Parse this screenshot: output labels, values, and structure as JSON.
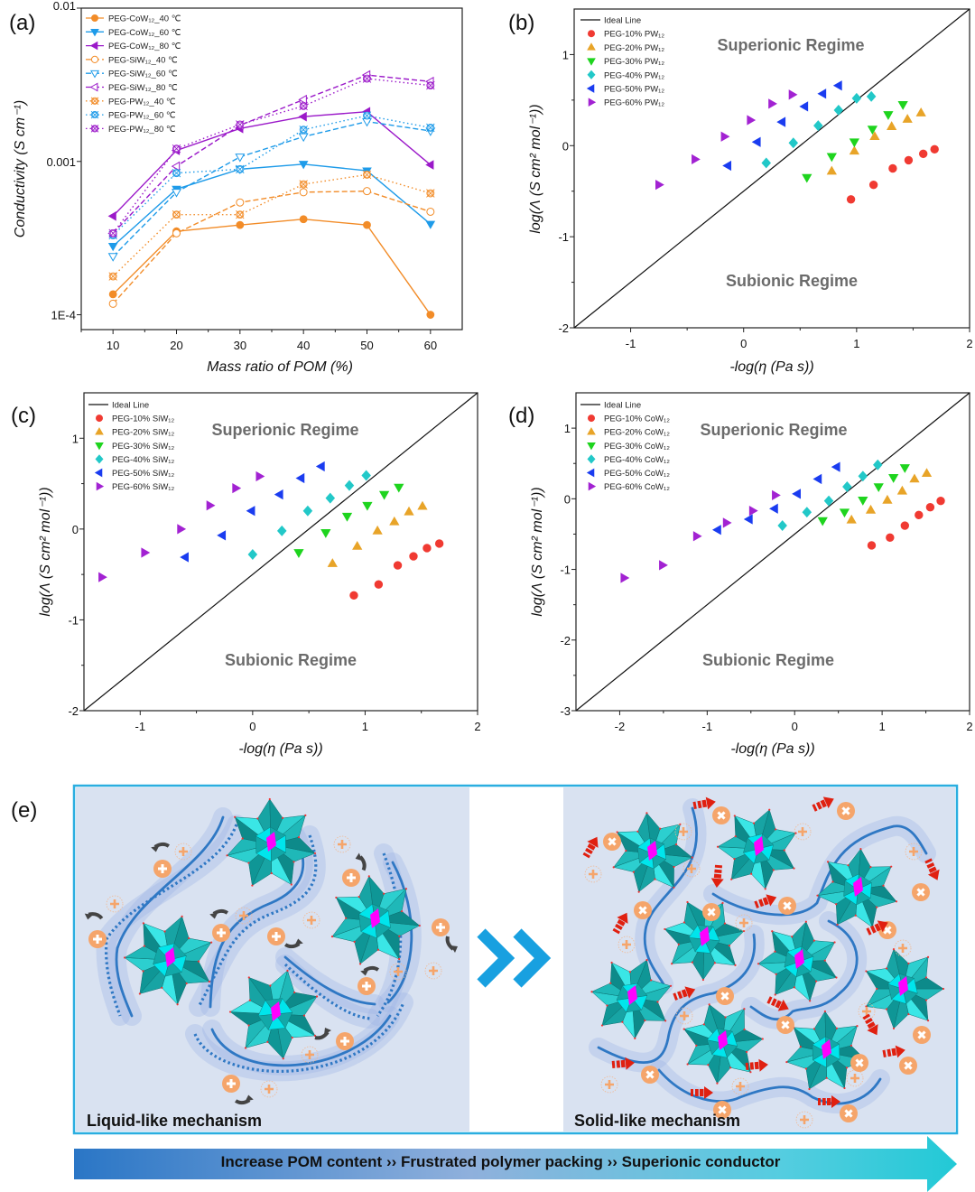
{
  "panel_labels": [
    "(a)",
    "(b)",
    "(c)",
    "(d)",
    "(e)"
  ],
  "chart_data": [
    {
      "type": "line",
      "xlabel": "Mass ratio of POM (%)",
      "ylabel": "Conductivity (S cm⁻¹)",
      "x": [
        10,
        20,
        30,
        40,
        50,
        60
      ],
      "xlim": [
        5,
        65
      ],
      "ylim": [
        8e-05,
        0.01
      ],
      "yscale": "log",
      "grid": false,
      "legend_placement": "top-left",
      "xticks": [
        {
          "value": 10,
          "label": "10"
        },
        {
          "value": 20,
          "label": "20"
        },
        {
          "value": 30,
          "label": "30"
        },
        {
          "value": 40,
          "label": "40"
        },
        {
          "value": 50,
          "label": "50"
        },
        {
          "value": 60,
          "label": "60"
        }
      ],
      "yticks": [
        {
          "value": 0.01,
          "label": "0.01"
        },
        {
          "value": 0.001,
          "label": "0.001"
        },
        {
          "value": 0.0001,
          "label": "1E-4"
        }
      ],
      "series": [
        {
          "name": "PEG-CoW₁₂_40 ℃",
          "color": "#f28c28",
          "marker": "circle",
          "filled": true,
          "line": "solid",
          "values": [
            0.000136,
            0.00035,
            0.000385,
            0.00042,
            0.000385,
            0.0001
          ]
        },
        {
          "name": "PEG-CoW₁₂_60 ℃",
          "color": "#1e9be9",
          "marker": "tri-down",
          "filled": true,
          "line": "solid",
          "values": [
            0.00028,
            0.00066,
            0.00089,
            0.00096,
            0.00087,
            0.00039
          ]
        },
        {
          "name": "PEG-CoW₁₂_80 ℃",
          "color": "#9b19c9",
          "marker": "tri-left",
          "filled": true,
          "line": "solid",
          "values": [
            0.00044,
            0.00118,
            0.00164,
            0.00196,
            0.00211,
            0.00095
          ]
        },
        {
          "name": "PEG-SiW₁₂_40 ℃",
          "color": "#f28c28",
          "marker": "circle",
          "filled": false,
          "line": "dashed",
          "values": [
            0.000118,
            0.00034,
            0.00054,
            0.00063,
            0.00064,
            0.00047
          ]
        },
        {
          "name": "PEG-SiW₁₂_60 ℃",
          "color": "#1e9be9",
          "marker": "tri-down",
          "filled": false,
          "line": "dashed",
          "values": [
            0.00024,
            0.00063,
            0.00107,
            0.00145,
            0.00182,
            0.00158
          ]
        },
        {
          "name": "PEG-SiW₁₂_80 ℃",
          "color": "#9b19c9",
          "marker": "tri-left",
          "filled": false,
          "line": "dashed",
          "values": [
            0.00034,
            0.00093,
            0.00172,
            0.00253,
            0.00366,
            0.00332
          ]
        },
        {
          "name": "PEG-PW₁₂_40 ℃",
          "color": "#f28c28",
          "marker": "crossed",
          "filled": false,
          "line": "dotted",
          "values": [
            0.000178,
            0.00045,
            0.00045,
            0.00071,
            0.00082,
            0.00062
          ]
        },
        {
          "name": "PEG-PW₁₂_60 ℃",
          "color": "#1e9be9",
          "marker": "crossed",
          "filled": false,
          "line": "dotted",
          "values": [
            0.00033,
            0.00084,
            0.00089,
            0.00161,
            0.00199,
            0.00166
          ]
        },
        {
          "name": "PEG-PW₁₂_80 ℃",
          "color": "#9b19c9",
          "marker": "crossed",
          "filled": false,
          "line": "dotted",
          "values": [
            0.00034,
            0.00121,
            0.00174,
            0.0023,
            0.00347,
            0.00313
          ]
        }
      ]
    },
    {
      "type": "scatter",
      "xlabel": "-log(η (Pa s))",
      "ylabel": "log(Λ (S cm² mol⁻¹))",
      "xlim": [
        -1.5,
        2
      ],
      "ylim": [
        -2,
        1.5
      ],
      "grid": false,
      "legend_placement": "top-left",
      "xticks": [
        {
          "value": -1,
          "label": "-1"
        },
        {
          "value": 0,
          "label": "0"
        },
        {
          "value": 1,
          "label": "1"
        },
        {
          "value": 2,
          "label": "2"
        }
      ],
      "yticks": [
        {
          "value": 1,
          "label": "1"
        },
        {
          "value": 0,
          "label": "0"
        },
        {
          "value": -1,
          "label": "-1"
        },
        {
          "value": -2,
          "label": "-2"
        }
      ],
      "ideal_line": {
        "label": "Ideal Line",
        "slope": 1,
        "intercept": -0.5
      },
      "annotations": [
        "Superionic Regime",
        "Subionic Regime"
      ],
      "series": [
        {
          "name": "PEG-10% PW₁₂",
          "color": "#f03a32",
          "marker": "circle",
          "points": [
            [
              0.95,
              -0.59
            ],
            [
              1.15,
              -0.43
            ],
            [
              1.32,
              -0.25
            ],
            [
              1.46,
              -0.16
            ],
            [
              1.59,
              -0.09
            ],
            [
              1.69,
              -0.04
            ]
          ]
        },
        {
          "name": "PEG-20% PW₁₂",
          "color": "#e8a428",
          "marker": "tri-up",
          "points": [
            [
              0.78,
              -0.28
            ],
            [
              0.98,
              -0.06
            ],
            [
              1.16,
              0.1
            ],
            [
              1.31,
              0.21
            ],
            [
              1.45,
              0.29
            ],
            [
              1.57,
              0.36
            ]
          ]
        },
        {
          "name": "PEG-30% PW₁₂",
          "color": "#1ed41e",
          "marker": "tri-down",
          "points": [
            [
              0.56,
              -0.35
            ],
            [
              0.78,
              -0.12
            ],
            [
              0.98,
              0.04
            ],
            [
              1.14,
              0.18
            ],
            [
              1.28,
              0.34
            ],
            [
              1.41,
              0.45
            ]
          ]
        },
        {
          "name": "PEG-40% PW₁₂",
          "color": "#22c8c8",
          "marker": "diamond",
          "points": [
            [
              0.2,
              -0.19
            ],
            [
              0.44,
              0.03
            ],
            [
              0.66,
              0.22
            ],
            [
              0.84,
              0.39
            ],
            [
              1.0,
              0.52
            ],
            [
              1.13,
              0.54
            ]
          ]
        },
        {
          "name": "PEG-50% PW₁₂",
          "color": "#1a3cf0",
          "marker": "tri-left",
          "points": [
            [
              -0.14,
              -0.22
            ],
            [
              0.12,
              0.04
            ],
            [
              0.34,
              0.26
            ],
            [
              0.54,
              0.43
            ],
            [
              0.7,
              0.57
            ],
            [
              0.84,
              0.66
            ]
          ]
        },
        {
          "name": "PEG-60% PW₁₂",
          "color": "#a222d2",
          "marker": "tri-right",
          "points": [
            [
              -0.75,
              -0.43
            ],
            [
              -0.43,
              -0.15
            ],
            [
              -0.17,
              0.1
            ],
            [
              0.06,
              0.28
            ],
            [
              0.25,
              0.46
            ],
            [
              0.43,
              0.56
            ]
          ]
        }
      ]
    },
    {
      "type": "scatter",
      "xlabel": "-log(η (Pa s))",
      "ylabel": "log(Λ (S cm² mol⁻¹))",
      "xlim": [
        -1.5,
        2
      ],
      "ylim": [
        -2,
        1.5
      ],
      "grid": false,
      "legend_placement": "top-left",
      "xticks": [
        {
          "value": -1,
          "label": "-1"
        },
        {
          "value": 0,
          "label": "0"
        },
        {
          "value": 1,
          "label": "1"
        },
        {
          "value": 2,
          "label": "2"
        }
      ],
      "yticks": [
        {
          "value": 1,
          "label": "1"
        },
        {
          "value": 0,
          "label": "0"
        },
        {
          "value": -1,
          "label": "-1"
        },
        {
          "value": -2,
          "label": "-2"
        }
      ],
      "ideal_line": {
        "label": "Ideal Line",
        "slope": 1,
        "intercept": -0.5
      },
      "annotations": [
        "Superionic Regime",
        "Subionic Regime"
      ],
      "series": [
        {
          "name": "PEG-10% SiW₁₂",
          "color": "#f03a32",
          "marker": "circle",
          "points": [
            [
              0.9,
              -0.73
            ],
            [
              1.12,
              -0.61
            ],
            [
              1.29,
              -0.4
            ],
            [
              1.43,
              -0.3
            ],
            [
              1.55,
              -0.21
            ],
            [
              1.66,
              -0.16
            ]
          ]
        },
        {
          "name": "PEG-20% SiW₁₂",
          "color": "#e8a428",
          "marker": "tri-up",
          "points": [
            [
              0.71,
              -0.38
            ],
            [
              0.93,
              -0.19
            ],
            [
              1.11,
              -0.02
            ],
            [
              1.26,
              0.08
            ],
            [
              1.39,
              0.19
            ],
            [
              1.51,
              0.25
            ]
          ]
        },
        {
          "name": "PEG-30% SiW₁₂",
          "color": "#1ed41e",
          "marker": "tri-down",
          "points": [
            [
              0.41,
              -0.26
            ],
            [
              0.65,
              -0.04
            ],
            [
              0.84,
              0.14
            ],
            [
              1.02,
              0.26
            ],
            [
              1.17,
              0.38
            ],
            [
              1.3,
              0.46
            ]
          ]
        },
        {
          "name": "PEG-40% SiW₁₂",
          "color": "#22c8c8",
          "marker": "diamond",
          "points": [
            [
              0.0,
              -0.28
            ],
            [
              0.26,
              -0.02
            ],
            [
              0.49,
              0.2
            ],
            [
              0.69,
              0.34
            ],
            [
              0.86,
              0.48
            ],
            [
              1.01,
              0.59
            ]
          ]
        },
        {
          "name": "PEG-50% SiW₁₂",
          "color": "#1a3cf0",
          "marker": "tri-left",
          "points": [
            [
              -0.6,
              -0.31
            ],
            [
              -0.27,
              -0.07
            ],
            [
              -0.01,
              0.2
            ],
            [
              0.24,
              0.38
            ],
            [
              0.43,
              0.56
            ],
            [
              0.61,
              0.69
            ]
          ]
        },
        {
          "name": "PEG-60% SiW₁₂",
          "color": "#a222d2",
          "marker": "tri-right",
          "points": [
            [
              -1.34,
              -0.53
            ],
            [
              -0.96,
              -0.26
            ],
            [
              -0.64,
              0.0
            ],
            [
              -0.38,
              0.26
            ],
            [
              -0.15,
              0.45
            ],
            [
              0.06,
              0.58
            ]
          ]
        }
      ]
    },
    {
      "type": "scatter",
      "xlabel": "-log(η (Pa s))",
      "ylabel": "log(Λ (S cm² mol⁻¹))",
      "xlim": [
        -2.5,
        2
      ],
      "ylim": [
        -3,
        1.5
      ],
      "grid": false,
      "legend_placement": "top-left",
      "xticks": [
        {
          "value": -2,
          "label": "-2"
        },
        {
          "value": -1,
          "label": "-1"
        },
        {
          "value": 0,
          "label": "0"
        },
        {
          "value": 1,
          "label": "1"
        },
        {
          "value": 2,
          "label": "2"
        }
      ],
      "yticks": [
        {
          "value": 1,
          "label": "1"
        },
        {
          "value": 0,
          "label": "0"
        },
        {
          "value": -1,
          "label": "-1"
        },
        {
          "value": -2,
          "label": "-2"
        },
        {
          "value": -3,
          "label": "-3"
        }
      ],
      "ideal_line": {
        "label": "Ideal Line",
        "slope": 1,
        "intercept": -0.5
      },
      "annotations": [
        "Superionic Regime",
        "Subionic Regime"
      ],
      "series": [
        {
          "name": "PEG-10% CoW₁₂",
          "color": "#f03a32",
          "marker": "circle",
          "points": [
            [
              0.88,
              -0.66
            ],
            [
              1.09,
              -0.55
            ],
            [
              1.26,
              -0.38
            ],
            [
              1.42,
              -0.23
            ],
            [
              1.55,
              -0.12
            ],
            [
              1.67,
              -0.03
            ]
          ]
        },
        {
          "name": "PEG-20% CoW₁₂",
          "color": "#e8a428",
          "marker": "tri-up",
          "points": [
            [
              0.65,
              -0.3
            ],
            [
              0.87,
              -0.16
            ],
            [
              1.06,
              -0.02
            ],
            [
              1.23,
              0.11
            ],
            [
              1.37,
              0.28
            ],
            [
              1.51,
              0.36
            ]
          ]
        },
        {
          "name": "PEG-30% CoW₁₂",
          "color": "#1ed41e",
          "marker": "tri-down",
          "points": [
            [
              0.32,
              -0.31
            ],
            [
              0.57,
              -0.19
            ],
            [
              0.78,
              -0.02
            ],
            [
              0.96,
              0.17
            ],
            [
              1.13,
              0.3
            ],
            [
              1.26,
              0.44
            ]
          ]
        },
        {
          "name": "PEG-40% CoW₁₂",
          "color": "#22c8c8",
          "marker": "diamond",
          "points": [
            [
              -0.14,
              -0.38
            ],
            [
              0.14,
              -0.19
            ],
            [
              0.39,
              -0.03
            ],
            [
              0.6,
              0.17
            ],
            [
              0.78,
              0.32
            ],
            [
              0.95,
              0.48
            ]
          ]
        },
        {
          "name": "PEG-50% CoW₁₂",
          "color": "#1a3cf0",
          "marker": "tri-left",
          "points": [
            [
              -0.88,
              -0.44
            ],
            [
              -0.52,
              -0.29
            ],
            [
              -0.23,
              -0.14
            ],
            [
              0.03,
              0.07
            ],
            [
              0.27,
              0.28
            ],
            [
              0.48,
              0.45
            ]
          ]
        },
        {
          "name": "PEG-60% CoW₁₂",
          "color": "#a222d2",
          "marker": "tri-right",
          "points": [
            [
              -1.95,
              -1.12
            ],
            [
              -1.51,
              -0.94
            ],
            [
              -1.12,
              -0.53
            ],
            [
              -0.78,
              -0.34
            ],
            [
              -0.48,
              -0.17
            ],
            [
              -0.22,
              0.05
            ]
          ]
        }
      ]
    }
  ],
  "illustration": {
    "left_label": "Liquid-like mechanism",
    "right_label": "Solid-like mechanism",
    "progress_bar_text": "Increase POM content ›› Frustrated polymer packing ›› Superionic conductor",
    "colors": {
      "pom_cluster": "#1fb8b8",
      "pom_center": "#ff00ff",
      "cation": "#f5a56b",
      "polymer_chain": "#2f78c4",
      "ion_hop_arrow": "#e02010",
      "frame": "#2aaee0",
      "background": "#d9e2f1"
    }
  }
}
